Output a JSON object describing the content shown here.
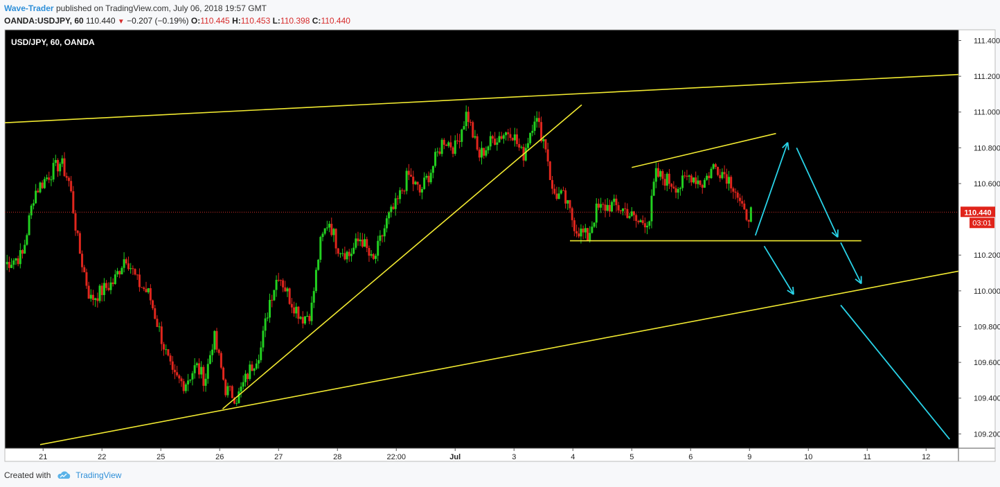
{
  "header": {
    "author": "Wave-Trader",
    "published_text": "published on TradingView.com, July 06, 2018 19:57 GMT",
    "symbol": "OANDA:USDJPY, 60",
    "last": "110.440",
    "change": "−0.207 (−0.19%)",
    "o_label": "O:",
    "o_value": "110.445",
    "h_label": "H:",
    "h_value": "110.453",
    "l_label": "L:",
    "l_value": "110.398",
    "c_label": "C:",
    "c_value": "110.440"
  },
  "chart_data": {
    "type": "candlestick",
    "title": "USD/JPY, 60, OANDA",
    "xlabels": [
      {
        "t": 0.65,
        "label": "21"
      },
      {
        "t": 1.65,
        "label": "22"
      },
      {
        "t": 2.65,
        "label": "25"
      },
      {
        "t": 3.65,
        "label": "26"
      },
      {
        "t": 4.65,
        "label": "27"
      },
      {
        "t": 5.65,
        "label": "28"
      },
      {
        "t": 6.65,
        "label": "22:00"
      },
      {
        "t": 7.65,
        "label": "Jul"
      },
      {
        "t": 8.65,
        "label": "3"
      },
      {
        "t": 9.65,
        "label": "4"
      },
      {
        "t": 10.65,
        "label": "5"
      },
      {
        "t": 11.65,
        "label": "6"
      },
      {
        "t": 12.65,
        "label": "9"
      },
      {
        "t": 13.65,
        "label": "10"
      },
      {
        "t": 14.65,
        "label": "11"
      },
      {
        "t": 15.65,
        "label": "12"
      }
    ],
    "xlim": [
      0,
      16.2
    ],
    "ylim": [
      109.12,
      111.46
    ],
    "yticks": [
      "109.200",
      "109.400",
      "109.600",
      "109.800",
      "110.000",
      "110.200",
      "110.600",
      "110.800",
      "111.000",
      "111.200",
      "111.400"
    ],
    "current_price": 110.44,
    "price_label": "110.440",
    "countdown": "03:01",
    "hourly_path": [
      [
        0.0,
        110.15
      ],
      [
        0.3,
        110.2
      ],
      [
        0.5,
        110.55
      ],
      [
        0.75,
        110.65
      ],
      [
        0.95,
        110.72
      ],
      [
        1.1,
        110.6
      ],
      [
        1.25,
        110.25
      ],
      [
        1.45,
        109.95
      ],
      [
        1.65,
        110.0
      ],
      [
        1.85,
        110.05
      ],
      [
        2.05,
        110.2
      ],
      [
        2.25,
        110.05
      ],
      [
        2.45,
        109.98
      ],
      [
        2.65,
        109.75
      ],
      [
        2.85,
        109.52
      ],
      [
        3.05,
        109.48
      ],
      [
        3.25,
        109.58
      ],
      [
        3.4,
        109.5
      ],
      [
        3.55,
        109.75
      ],
      [
        3.75,
        109.45
      ],
      [
        3.95,
        109.4
      ],
      [
        4.15,
        109.55
      ],
      [
        4.35,
        109.68
      ],
      [
        4.5,
        109.95
      ],
      [
        4.65,
        110.1
      ],
      [
        4.85,
        109.95
      ],
      [
        5.05,
        109.85
      ],
      [
        5.2,
        109.88
      ],
      [
        5.35,
        110.25
      ],
      [
        5.5,
        110.4
      ],
      [
        5.65,
        110.25
      ],
      [
        5.85,
        110.2
      ],
      [
        6.05,
        110.3
      ],
      [
        6.25,
        110.15
      ],
      [
        6.5,
        110.4
      ],
      [
        6.65,
        110.48
      ],
      [
        6.85,
        110.65
      ],
      [
        7.05,
        110.55
      ],
      [
        7.25,
        110.68
      ],
      [
        7.45,
        110.85
      ],
      [
        7.65,
        110.8
      ],
      [
        7.85,
        111.0
      ],
      [
        8.05,
        110.75
      ],
      [
        8.3,
        110.85
      ],
      [
        8.6,
        110.9
      ],
      [
        8.8,
        110.75
      ],
      [
        9.0,
        110.98
      ],
      [
        9.2,
        110.8
      ],
      [
        9.3,
        110.55
      ],
      [
        9.5,
        110.52
      ],
      [
        9.7,
        110.35
      ],
      [
        9.9,
        110.3
      ],
      [
        10.05,
        110.45
      ],
      [
        10.3,
        110.48
      ],
      [
        10.55,
        110.45
      ],
      [
        10.75,
        110.38
      ],
      [
        10.95,
        110.4
      ],
      [
        11.05,
        110.65
      ],
      [
        11.25,
        110.62
      ],
      [
        11.45,
        110.58
      ],
      [
        11.65,
        110.65
      ],
      [
        11.85,
        110.6
      ],
      [
        12.05,
        110.7
      ],
      [
        12.25,
        110.65
      ],
      [
        12.4,
        110.58
      ],
      [
        12.55,
        110.42
      ],
      [
        12.7,
        110.44
      ]
    ],
    "trendlines": [
      {
        "name": "upper-channel",
        "from": [
          0.0,
          110.94
        ],
        "to": [
          16.2,
          111.21
        ],
        "color": "#f2ea31"
      },
      {
        "name": "lower-channel",
        "from": [
          0.6,
          109.14
        ],
        "to": [
          16.2,
          110.11
        ],
        "color": "#f2ea31"
      },
      {
        "name": "rising-support",
        "from": [
          3.7,
          109.34
        ],
        "to": [
          9.8,
          111.04
        ],
        "color": "#f2ea31"
      },
      {
        "name": "wedge-top",
        "from": [
          10.65,
          110.69
        ],
        "to": [
          13.1,
          110.88
        ],
        "color": "#f2ea31"
      },
      {
        "name": "wedge-base",
        "from": [
          9.6,
          110.28
        ],
        "to": [
          14.55,
          110.28
        ],
        "color": "#f2ea31"
      }
    ],
    "projection_color": "#29d3e8",
    "projections": [
      {
        "from": [
          12.75,
          110.31
        ],
        "to": [
          13.3,
          110.83
        ],
        "head": true
      },
      {
        "from": [
          13.45,
          110.8
        ],
        "to": [
          14.15,
          110.3
        ],
        "head": true
      },
      {
        "from": [
          14.2,
          110.27
        ],
        "to": [
          14.55,
          110.04
        ],
        "head": true
      },
      {
        "from": [
          12.9,
          110.25
        ],
        "to": [
          13.4,
          109.98
        ],
        "head": true
      },
      {
        "from": [
          14.2,
          109.92
        ],
        "to": [
          16.05,
          109.17
        ],
        "head": false
      }
    ]
  },
  "footer": {
    "created_with": "Created with",
    "brand": "TradingView"
  }
}
